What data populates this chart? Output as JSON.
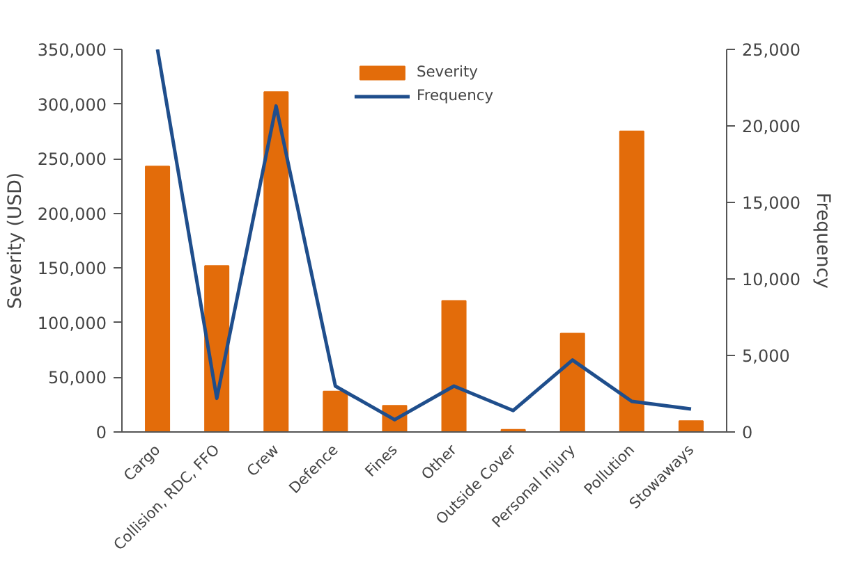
{
  "chart_data": {
    "type": "bar",
    "categories": [
      "Cargo",
      "Collision, RDC, FFO",
      "Crew",
      "Defence",
      "Fines",
      "Other",
      "Outside Cover",
      "Personal Injury",
      "Pollution",
      "Stowaways"
    ],
    "series": [
      {
        "name": "Severity",
        "color": "#e36c0a",
        "values": [
          243000,
          152000,
          311000,
          37000,
          24000,
          120000,
          2000,
          90000,
          275000,
          10000
        ]
      },
      {
        "name": "Frequency",
        "type": "line",
        "axis": "y2",
        "color": "#1f4e8c",
        "values": [
          25000,
          2200,
          21300,
          3000,
          800,
          3000,
          1400,
          4700,
          2000,
          1500
        ]
      }
    ],
    "ylabel": "Severity (USD)",
    "y2label": "Frequency",
    "ylim": [
      0,
      350000
    ],
    "yticks": [
      {
        "value": 0,
        "label": "0"
      },
      {
        "value": 50000,
        "label": "50,000"
      },
      {
        "value": 100000,
        "label": "100,000"
      },
      {
        "value": 150000,
        "label": "150,000"
      },
      {
        "value": 200000,
        "label": "200,000"
      },
      {
        "value": 250000,
        "label": "250,000"
      },
      {
        "value": 300000,
        "label": "300,000"
      },
      {
        "value": 350000,
        "label": "350,000"
      }
    ],
    "y2lim": [
      0,
      25000
    ],
    "y2ticks": [
      {
        "value": 0,
        "label": "0"
      },
      {
        "value": 5000,
        "label": "5,000"
      },
      {
        "value": 10000,
        "label": "10,000"
      },
      {
        "value": 15000,
        "label": "15,000"
      },
      {
        "value": 20000,
        "label": "20,000"
      },
      {
        "value": 25000,
        "label": "25,000"
      }
    ],
    "grid": false,
    "legend": "top"
  }
}
